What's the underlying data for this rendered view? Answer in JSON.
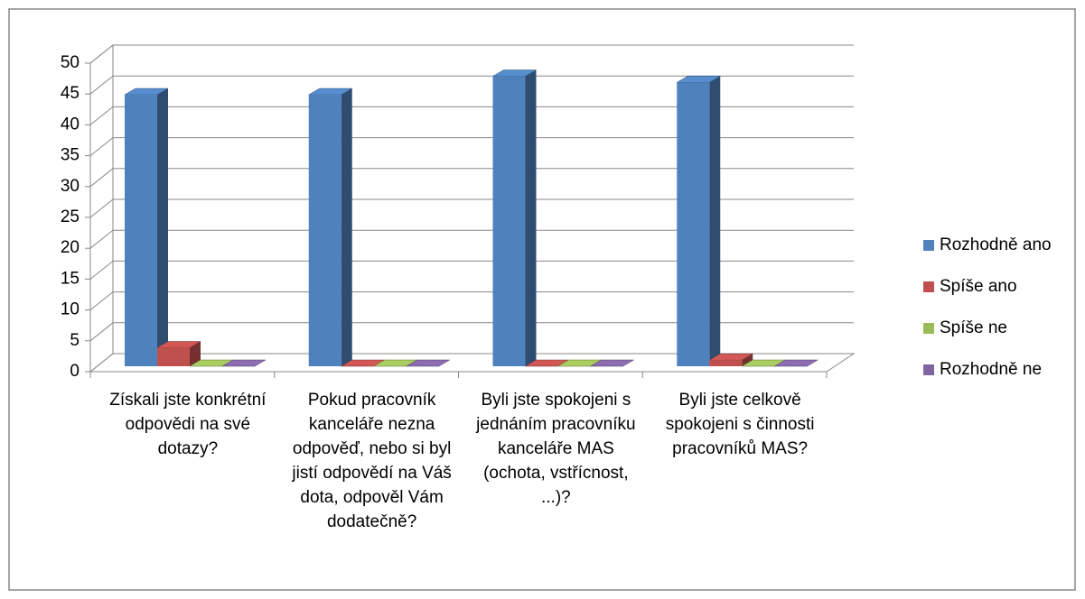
{
  "chart_data": {
    "type": "bar3d",
    "categories": [
      "Získali jste konkrétní odpovědi na své dotazy?",
      "Pokud pracovník kanceláře nezna odpověď, nebo si byl jistí odpovědí na Váš dota, odpověl Vám dodatečně?",
      "Byli jste spokojeni s jednáním pracovníku kanceláře MAS (ochota, vstřícnost, ...)?",
      "Byli jste celkově spokojeni s činnosti pracovníků MAS?"
    ],
    "series": [
      {
        "name": "Rozhodně ano",
        "color": "#4f81bd",
        "values": [
          44,
          44,
          47,
          46
        ]
      },
      {
        "name": "Spíše ano",
        "color": "#c0504d",
        "values": [
          3,
          0,
          0,
          1
        ]
      },
      {
        "name": "Spíše ne",
        "color": "#9bbb59",
        "values": [
          0,
          0,
          0,
          0
        ]
      },
      {
        "name": "Rozhodně ne",
        "color": "#8064a2",
        "values": [
          0,
          0,
          0,
          0
        ]
      }
    ],
    "ylim": [
      0,
      50
    ],
    "yticks": [
      0,
      5,
      10,
      15,
      20,
      25,
      30,
      35,
      40,
      45,
      50
    ],
    "grid": true,
    "legend": "right"
  }
}
